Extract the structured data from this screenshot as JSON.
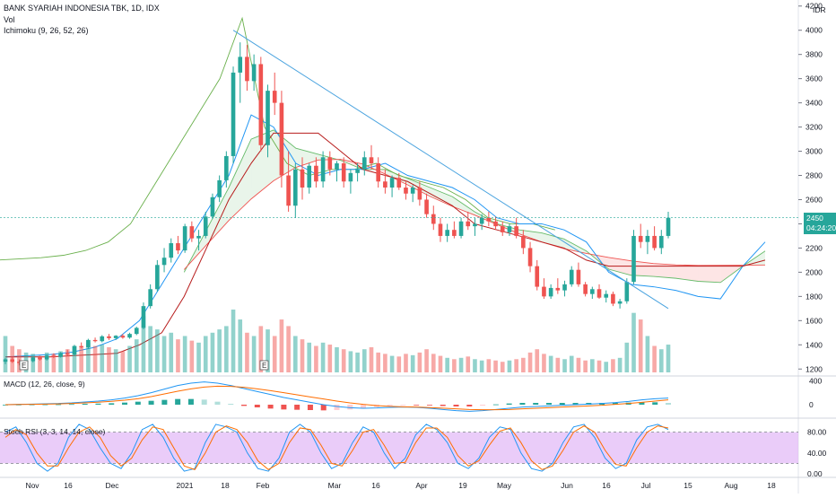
{
  "title": "BANK SYARIAH INDONESIA TBK, 1D, IDX",
  "vol_label": "Vol",
  "ichimoku_label": "Ichimoku (9, 26, 52, 26)",
  "macd_label": "MACD (12, 26, close, 9)",
  "rsi_label": "Stoch RSI (3, 3, 14, 14, close)",
  "currency": "IDR",
  "last_price": "2450",
  "countdown": "04:24:20",
  "colors": {
    "up": "#26a69a",
    "down": "#ef5350",
    "trend": "#4aa3df",
    "rsi_band": "#e1b7f7"
  },
  "chart_data": {
    "type": "candlestick",
    "price_axis": {
      "ticks": [
        "4200",
        "4000",
        "3800",
        "3600",
        "3400",
        "3200",
        "3000",
        "2800",
        "2600",
        "2400",
        "2200",
        "2000",
        "1800",
        "1600",
        "1400",
        "1200"
      ],
      "ylim": [
        1150,
        4250
      ]
    },
    "x_ticks": [
      "Nov",
      "16",
      "Dec",
      "2021",
      "18",
      "Feb",
      "Mar",
      "16",
      "Apr",
      "19",
      "May",
      "Jun",
      "16",
      "Jul",
      "15",
      "Aug",
      "18"
    ],
    "macd_axis": {
      "ticks": [
        "400",
        "0"
      ]
    },
    "rsi_axis": {
      "ticks": [
        "80.00",
        "40.00",
        "0.00"
      ]
    },
    "markers": [
      "E",
      "E"
    ],
    "candles": [
      [
        1260,
        1290,
        1240,
        1280
      ],
      [
        1280,
        1300,
        1250,
        1260
      ],
      [
        1260,
        1280,
        1230,
        1250
      ],
      [
        1250,
        1270,
        1240,
        1265
      ],
      [
        1265,
        1300,
        1255,
        1295
      ],
      [
        1295,
        1310,
        1270,
        1280
      ],
      [
        1280,
        1320,
        1270,
        1310
      ],
      [
        1310,
        1330,
        1290,
        1300
      ],
      [
        1300,
        1340,
        1295,
        1330
      ],
      [
        1330,
        1360,
        1310,
        1320
      ],
      [
        1320,
        1400,
        1310,
        1390
      ],
      [
        1390,
        1420,
        1370,
        1380
      ],
      [
        1380,
        1450,
        1370,
        1440
      ],
      [
        1440,
        1460,
        1420,
        1430
      ],
      [
        1430,
        1480,
        1420,
        1470
      ],
      [
        1470,
        1490,
        1440,
        1455
      ],
      [
        1455,
        1480,
        1440,
        1475
      ],
      [
        1475,
        1490,
        1450,
        1460
      ],
      [
        1460,
        1500,
        1450,
        1490
      ],
      [
        1490,
        1550,
        1480,
        1540
      ],
      [
        1540,
        1750,
        1530,
        1720
      ],
      [
        1720,
        1900,
        1700,
        1860
      ],
      [
        1860,
        2100,
        1840,
        2060
      ],
      [
        2060,
        2200,
        2000,
        2120
      ],
      [
        2120,
        2280,
        2080,
        2240
      ],
      [
        2240,
        2300,
        2150,
        2180
      ],
      [
        2180,
        2400,
        2160,
        2380
      ],
      [
        2380,
        2420,
        2250,
        2280
      ],
      [
        2280,
        2350,
        2180,
        2300
      ],
      [
        2300,
        2500,
        2280,
        2460
      ],
      [
        2460,
        2650,
        2440,
        2620
      ],
      [
        2620,
        2800,
        2580,
        2760
      ],
      [
        2760,
        3000,
        2700,
        2960
      ],
      [
        2960,
        3700,
        2900,
        3650
      ],
      [
        3650,
        3900,
        3400,
        3780
      ],
      [
        3780,
        3880,
        3500,
        3580
      ],
      [
        3580,
        3800,
        3500,
        3720
      ],
      [
        3720,
        3780,
        3000,
        3050
      ],
      [
        3050,
        3550,
        2950,
        3500
      ],
      [
        3500,
        3650,
        3300,
        3400
      ],
      [
        3400,
        3500,
        2700,
        2800
      ],
      [
        2800,
        3000,
        2500,
        2550
      ],
      [
        2550,
        2900,
        2450,
        2850
      ],
      [
        2850,
        2950,
        2600,
        2700
      ],
      [
        2700,
        2900,
        2650,
        2880
      ],
      [
        2880,
        2950,
        2700,
        2750
      ],
      [
        2750,
        3000,
        2700,
        2950
      ],
      [
        2950,
        3000,
        2800,
        2850
      ],
      [
        2850,
        2920,
        2750,
        2900
      ],
      [
        2900,
        2950,
        2700,
        2750
      ],
      [
        2750,
        2850,
        2650,
        2820
      ],
      [
        2820,
        2900,
        2750,
        2850
      ],
      [
        2850,
        3000,
        2800,
        2950
      ],
      [
        2950,
        3050,
        2850,
        2900
      ],
      [
        2900,
        2950,
        2700,
        2750
      ],
      [
        2750,
        2850,
        2650,
        2700
      ],
      [
        2700,
        2800,
        2620,
        2780
      ],
      [
        2780,
        2820,
        2680,
        2700
      ],
      [
        2700,
        2750,
        2600,
        2650
      ],
      [
        2650,
        2720,
        2580,
        2700
      ],
      [
        2700,
        2750,
        2550,
        2600
      ],
      [
        2600,
        2650,
        2450,
        2480
      ],
      [
        2480,
        2550,
        2350,
        2400
      ],
      [
        2400,
        2450,
        2250,
        2300
      ],
      [
        2300,
        2400,
        2250,
        2350
      ],
      [
        2350,
        2420,
        2280,
        2300
      ],
      [
        2300,
        2450,
        2280,
        2420
      ],
      [
        2420,
        2500,
        2350,
        2380
      ],
      [
        2380,
        2450,
        2300,
        2400
      ],
      [
        2400,
        2480,
        2350,
        2450
      ],
      [
        2450,
        2500,
        2380,
        2420
      ],
      [
        2420,
        2460,
        2350,
        2380
      ],
      [
        2380,
        2420,
        2300,
        2330
      ],
      [
        2330,
        2400,
        2300,
        2380
      ],
      [
        2380,
        2450,
        2280,
        2300
      ],
      [
        2300,
        2350,
        2150,
        2200
      ],
      [
        2200,
        2250,
        2000,
        2050
      ],
      [
        2050,
        2100,
        1850,
        1880
      ],
      [
        1880,
        1950,
        1780,
        1800
      ],
      [
        1800,
        1900,
        1780,
        1870
      ],
      [
        1870,
        1950,
        1820,
        1850
      ],
      [
        1850,
        1930,
        1800,
        1900
      ],
      [
        1900,
        2050,
        1880,
        2020
      ],
      [
        2020,
        2080,
        1880,
        1900
      ],
      [
        1900,
        1920,
        1800,
        1820
      ],
      [
        1820,
        1880,
        1780,
        1860
      ],
      [
        1860,
        1900,
        1780,
        1790
      ],
      [
        1790,
        1850,
        1750,
        1820
      ],
      [
        1820,
        1840,
        1720,
        1740
      ],
      [
        1740,
        1780,
        1700,
        1760
      ],
      [
        1760,
        1950,
        1740,
        1920
      ],
      [
        1920,
        2350,
        1900,
        2300
      ],
      [
        2300,
        2400,
        2200,
        2250
      ],
      [
        2250,
        2350,
        2150,
        2300
      ],
      [
        2300,
        2380,
        2180,
        2200
      ],
      [
        2200,
        2350,
        2150,
        2300
      ],
      [
        2300,
        2500,
        2280,
        2450
      ]
    ],
    "volumes": [
      55,
      40,
      35,
      30,
      28,
      25,
      30,
      28,
      32,
      35,
      40,
      38,
      45,
      40,
      42,
      38,
      35,
      32,
      40,
      50,
      85,
      70,
      65,
      55,
      60,
      50,
      55,
      48,
      45,
      55,
      60,
      65,
      70,
      95,
      80,
      60,
      55,
      70,
      65,
      55,
      80,
      70,
      55,
      50,
      45,
      40,
      45,
      42,
      38,
      35,
      32,
      30,
      35,
      38,
      30,
      28,
      25,
      24,
      28,
      26,
      30,
      35,
      28,
      25,
      22,
      20,
      22,
      24,
      20,
      18,
      20,
      18,
      16,
      18,
      20,
      22,
      30,
      35,
      28,
      25,
      22,
      20,
      25,
      22,
      18,
      20,
      18,
      16,
      20,
      22,
      45,
      90,
      80,
      55,
      40,
      35,
      42
    ],
    "trendline": {
      "from": [
        33,
        4000
      ],
      "to": [
        96,
        1700
      ]
    },
    "macd": {
      "macd": [
        0,
        5,
        10,
        15,
        20,
        30,
        45,
        60,
        80,
        110,
        150,
        200,
        260,
        320,
        360,
        380,
        360,
        320,
        270,
        220,
        170,
        120,
        80,
        40,
        0,
        -30,
        -50,
        -60,
        -55,
        -45,
        -40,
        -45,
        -60,
        -80,
        -100,
        -110,
        -100,
        -80,
        -60,
        -40,
        -30,
        -20,
        -10,
        0,
        10,
        20,
        35,
        55,
        80,
        100,
        110
      ],
      "signal": [
        0,
        3,
        6,
        10,
        14,
        20,
        30,
        42,
        56,
        75,
        100,
        135,
        180,
        225,
        265,
        295,
        310,
        305,
        290,
        265,
        235,
        200,
        165,
        130,
        95,
        60,
        30,
        5,
        -15,
        -28,
        -35,
        -40,
        -48,
        -58,
        -70,
        -80,
        -85,
        -85,
        -80,
        -70,
        -60,
        -50,
        -40,
        -30,
        -20,
        -10,
        5,
        20,
        40,
        60,
        80
      ],
      "hist": [
        0,
        2,
        4,
        5,
        6,
        10,
        15,
        18,
        24,
        35,
        50,
        65,
        80,
        95,
        95,
        85,
        50,
        15,
        -20,
        -45,
        -65,
        -80,
        -85,
        -90,
        -95,
        -90,
        -80,
        -65,
        -40,
        -17,
        -5,
        -5,
        -12,
        -22,
        -30,
        -30,
        -15,
        5,
        20,
        30,
        30,
        30,
        30,
        30,
        30,
        30,
        30,
        35,
        40,
        40,
        30
      ]
    },
    "stoch_rsi": {
      "k": [
        80,
        90,
        60,
        20,
        5,
        20,
        70,
        95,
        85,
        50,
        20,
        10,
        40,
        85,
        95,
        70,
        30,
        5,
        10,
        60,
        95,
        90,
        80,
        40,
        10,
        5,
        30,
        80,
        95,
        80,
        40,
        10,
        20,
        60,
        90,
        80,
        40,
        10,
        30,
        75,
        95,
        85,
        60,
        20,
        10,
        30,
        70,
        90,
        85,
        40,
        10,
        5,
        20,
        60,
        90,
        95,
        70,
        30,
        10,
        20,
        65,
        90,
        95,
        85
      ],
      "d": [
        70,
        85,
        75,
        40,
        15,
        15,
        50,
        80,
        90,
        70,
        35,
        15,
        30,
        65,
        90,
        85,
        50,
        15,
        8,
        40,
        80,
        92,
        85,
        60,
        25,
        8,
        20,
        60,
        88,
        85,
        55,
        20,
        15,
        45,
        80,
        85,
        55,
        20,
        22,
        60,
        88,
        88,
        70,
        35,
        15,
        25,
        55,
        82,
        88,
        60,
        25,
        8,
        15,
        45,
        80,
        92,
        80,
        45,
        18,
        15,
        50,
        80,
        92,
        88
      ]
    },
    "ichimoku": {
      "tenkan": [
        1300,
        1310,
        1320,
        1340,
        1380,
        1450,
        1600,
        1900,
        2200,
        2500,
        2800,
        3300,
        3200,
        2900,
        2800,
        2850,
        2850,
        2900,
        2800,
        2750,
        2700,
        2600,
        2450,
        2400,
        2400,
        2350,
        2250,
        2000,
        1900,
        1880,
        1850,
        1800,
        1780,
        2050,
        2250
      ],
      "kijun": [
        1300,
        1300,
        1300,
        1310,
        1320,
        1330,
        1400,
        1500,
        1800,
        2200,
        2600,
        2900,
        3150,
        3150,
        3150,
        3000,
        2850,
        2800,
        2750,
        2650,
        2550,
        2400,
        2350,
        2300,
        2250,
        2200,
        2100,
        2050,
        2050,
        2050,
        2050,
        2050,
        2050,
        2050,
        2100
      ]
    }
  }
}
